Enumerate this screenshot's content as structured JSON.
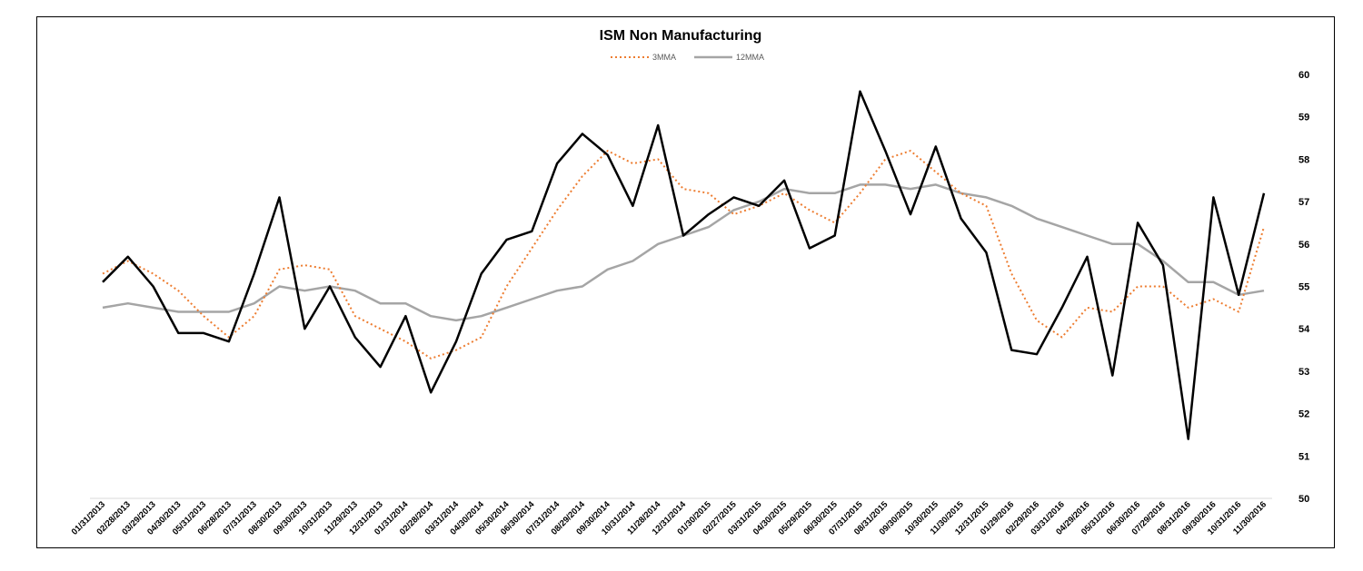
{
  "chart_data": {
    "type": "line",
    "title": "ISM Non Manufacturing",
    "xlabel": "",
    "ylabel": "",
    "ylim": [
      50,
      60
    ],
    "y_ticks": [
      "50",
      "51",
      "52",
      "53",
      "54",
      "55",
      "56",
      "57",
      "58",
      "59",
      "60"
    ],
    "y_axis_position": "right",
    "grid": false,
    "legend_position": "top",
    "x": [
      "01/31/2013",
      "02/28/2013",
      "03/29/2013",
      "04/30/2013",
      "05/31/2013",
      "06/28/2013",
      "07/31/2013",
      "08/30/2013",
      "09/30/2013",
      "10/31/2013",
      "11/29/2013",
      "12/31/2013",
      "01/31/2014",
      "02/28/2014",
      "03/31/2014",
      "04/30/2014",
      "05/30/2014",
      "06/30/2014",
      "07/31/2014",
      "08/29/2014",
      "09/30/2014",
      "10/31/2014",
      "11/28/2014",
      "12/31/2014",
      "01/30/2015",
      "02/27/2015",
      "03/31/2015",
      "04/30/2015",
      "05/29/2015",
      "06/30/2015",
      "07/31/2015",
      "08/31/2015",
      "09/30/2015",
      "10/30/2015",
      "11/30/2015",
      "12/31/2015",
      "01/29/2016",
      "02/29/2016",
      "03/31/2016",
      "04/29/2016",
      "05/31/2016",
      "06/30/2016",
      "07/29/2016",
      "08/31/2016",
      "09/30/2016",
      "10/31/2016",
      "11/30/2016"
    ],
    "series": [
      {
        "name": "",
        "color": "#000000",
        "style": "solid",
        "values": [
          55.1,
          55.7,
          55.0,
          53.9,
          53.9,
          53.7,
          55.3,
          57.1,
          54.0,
          55.0,
          53.8,
          53.1,
          54.3,
          52.5,
          53.7,
          55.3,
          56.1,
          56.3,
          57.9,
          58.6,
          58.1,
          56.9,
          58.8,
          56.2,
          56.7,
          57.1,
          56.9,
          57.5,
          55.9,
          56.2,
          59.6,
          58.2,
          56.7,
          58.3,
          56.6,
          55.8,
          53.5,
          53.4,
          54.5,
          55.7,
          52.9,
          56.5,
          55.5,
          51.4,
          57.1,
          54.8,
          57.2
        ]
      },
      {
        "name": "3MMA",
        "color": "#ED7D31",
        "style": "dotted",
        "values": [
          55.3,
          55.6,
          55.3,
          54.9,
          54.3,
          53.8,
          54.3,
          55.4,
          55.5,
          55.4,
          54.3,
          54.0,
          53.7,
          53.3,
          53.5,
          53.8,
          55.0,
          55.9,
          56.8,
          57.6,
          58.2,
          57.9,
          58.0,
          57.3,
          57.2,
          56.7,
          56.9,
          57.2,
          56.8,
          56.5,
          57.2,
          58.0,
          58.2,
          57.7,
          57.2,
          56.9,
          55.3,
          54.2,
          53.8,
          54.5,
          54.4,
          55.0,
          55.0,
          54.5,
          54.7,
          54.4,
          56.4
        ]
      },
      {
        "name": "12MMA",
        "color": "#A5A5A5",
        "style": "solid",
        "values": [
          54.5,
          54.6,
          54.5,
          54.4,
          54.4,
          54.4,
          54.6,
          55.0,
          54.9,
          55.0,
          54.9,
          54.6,
          54.6,
          54.3,
          54.2,
          54.3,
          54.5,
          54.7,
          54.9,
          55.0,
          55.4,
          55.6,
          56.0,
          56.2,
          56.4,
          56.8,
          57.0,
          57.3,
          57.2,
          57.2,
          57.4,
          57.4,
          57.3,
          57.4,
          57.2,
          57.1,
          56.9,
          56.6,
          56.4,
          56.2,
          56.0,
          56.0,
          55.6,
          55.1,
          55.1,
          54.8,
          54.9
        ]
      }
    ]
  }
}
